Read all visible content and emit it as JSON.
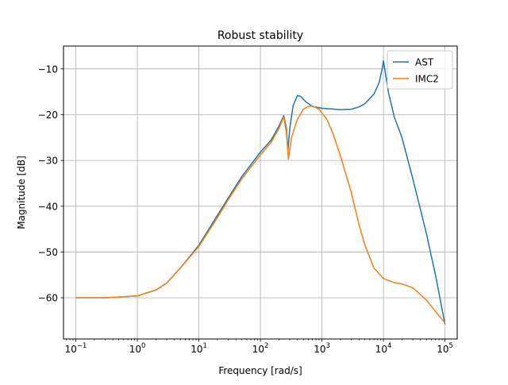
{
  "chart_data": {
    "type": "line",
    "title": "Robust stability",
    "xlabel": "Frequency [rad/s]",
    "ylabel": "Magnitude [dB]",
    "xscale": "log",
    "xlim": [
      0.063,
      158000
    ],
    "ylim": [
      -69,
      -5
    ],
    "xticks": [
      {
        "value": 0.1,
        "base": "10",
        "exp": "−1"
      },
      {
        "value": 1,
        "base": "10",
        "exp": "0"
      },
      {
        "value": 10,
        "base": "10",
        "exp": "1"
      },
      {
        "value": 100,
        "base": "10",
        "exp": "2"
      },
      {
        "value": 1000,
        "base": "10",
        "exp": "3"
      },
      {
        "value": 10000,
        "base": "10",
        "exp": "4"
      },
      {
        "value": 100000,
        "base": "10",
        "exp": "5"
      }
    ],
    "yticks": [
      {
        "value": -10,
        "label": "−10"
      },
      {
        "value": -20,
        "label": "−20"
      },
      {
        "value": -30,
        "label": "−30"
      },
      {
        "value": -40,
        "label": "−40"
      },
      {
        "value": -50,
        "label": "−50"
      },
      {
        "value": -60,
        "label": "−60"
      }
    ],
    "grid": true,
    "legend_position": "top-right",
    "series": [
      {
        "name": "AST",
        "color": "#1f77b4",
        "points": [
          [
            0.1,
            -60
          ],
          [
            0.3,
            -60
          ],
          [
            1,
            -59.6
          ],
          [
            2,
            -58.3
          ],
          [
            3,
            -56.8
          ],
          [
            5,
            -53.5
          ],
          [
            10,
            -48.5
          ],
          [
            20,
            -42
          ],
          [
            30,
            -38.2
          ],
          [
            50,
            -33.5
          ],
          [
            100,
            -28.2
          ],
          [
            150,
            -25.5
          ],
          [
            200,
            -22.5
          ],
          [
            240,
            -20.2
          ],
          [
            265,
            -23
          ],
          [
            280,
            -27.8
          ],
          [
            300,
            -23
          ],
          [
            340,
            -18
          ],
          [
            400,
            -15.8
          ],
          [
            450,
            -16
          ],
          [
            550,
            -17.2
          ],
          [
            700,
            -18.2
          ],
          [
            1000,
            -18.6
          ],
          [
            2000,
            -18.9
          ],
          [
            3000,
            -18.8
          ],
          [
            4000,
            -18.3
          ],
          [
            5000,
            -17.6
          ],
          [
            7000,
            -15.5
          ],
          [
            8500,
            -13
          ],
          [
            9500,
            -10
          ],
          [
            10000,
            -8.2
          ],
          [
            10500,
            -10
          ],
          [
            12000,
            -15
          ],
          [
            15000,
            -20.5
          ],
          [
            20000,
            -25
          ],
          [
            30000,
            -34
          ],
          [
            50000,
            -46
          ],
          [
            70000,
            -55
          ],
          [
            100000,
            -65.8
          ]
        ]
      },
      {
        "name": "IMC2",
        "color": "#ff7f0e",
        "points": [
          [
            0.1,
            -60
          ],
          [
            0.3,
            -60
          ],
          [
            1,
            -59.6
          ],
          [
            2,
            -58.3
          ],
          [
            3,
            -56.8
          ],
          [
            5,
            -53.5
          ],
          [
            10,
            -48.8
          ],
          [
            20,
            -42.5
          ],
          [
            30,
            -38.6
          ],
          [
            50,
            -34
          ],
          [
            100,
            -28.8
          ],
          [
            150,
            -26
          ],
          [
            200,
            -23
          ],
          [
            240,
            -20.5
          ],
          [
            265,
            -24
          ],
          [
            285,
            -29.7
          ],
          [
            320,
            -25
          ],
          [
            400,
            -21
          ],
          [
            500,
            -18.8
          ],
          [
            600,
            -18.2
          ],
          [
            700,
            -18.1
          ],
          [
            900,
            -18.8
          ],
          [
            1200,
            -21
          ],
          [
            1500,
            -24
          ],
          [
            2000,
            -29
          ],
          [
            3000,
            -37
          ],
          [
            4000,
            -44
          ],
          [
            5000,
            -48.5
          ],
          [
            7000,
            -53.5
          ],
          [
            10000,
            -55.8
          ],
          [
            15000,
            -56.7
          ],
          [
            20000,
            -57
          ],
          [
            30000,
            -57.8
          ],
          [
            50000,
            -60.5
          ],
          [
            70000,
            -63
          ],
          [
            100000,
            -65.5
          ]
        ]
      }
    ]
  }
}
